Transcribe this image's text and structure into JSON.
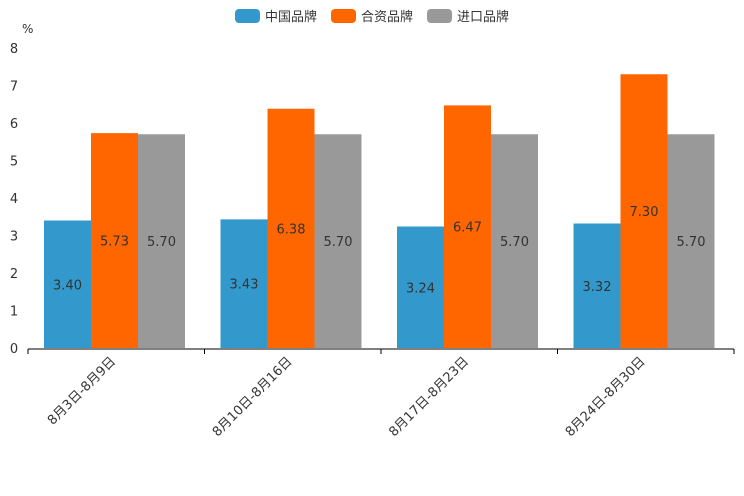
{
  "chart_data": {
    "type": "bar",
    "unit": "%",
    "categories": [
      "8月3日-8月9日",
      "8月10日-8月16日",
      "8月17日-8月23日",
      "8月24日-8月30日"
    ],
    "series": [
      {
        "name": "中国品牌",
        "color": "#3399cc",
        "values": [
          3.4,
          3.43,
          3.24,
          3.32
        ],
        "labels": [
          "3.40",
          "3.43",
          "3.24",
          "3.32"
        ]
      },
      {
        "name": "合资品牌",
        "color": "#ff6600",
        "values": [
          5.73,
          6.38,
          6.47,
          7.3
        ],
        "labels": [
          "5.73",
          "6.38",
          "6.47",
          "7.30"
        ]
      },
      {
        "name": "进口品牌",
        "color": "#999999",
        "values": [
          5.7,
          5.7,
          5.7,
          5.7
        ],
        "labels": [
          "5.70",
          "5.70",
          "5.70",
          "5.70"
        ]
      }
    ],
    "ylim": [
      0,
      8
    ],
    "yticks": [
      "0",
      "1",
      "2",
      "3",
      "4",
      "5",
      "6",
      "7",
      "8"
    ],
    "legend_position": "top-center",
    "grid": false
  }
}
